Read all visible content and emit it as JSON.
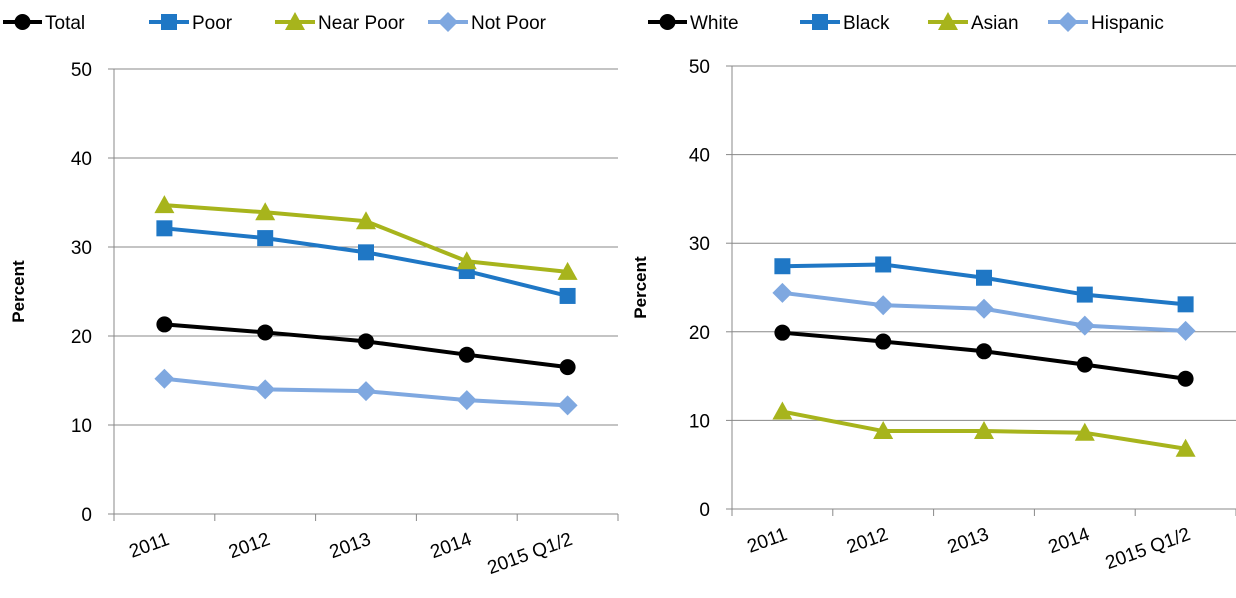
{
  "chart_data": [
    {
      "type": "line",
      "title": "",
      "xlabel": "",
      "ylabel": "Percent",
      "ylim": [
        0,
        50
      ],
      "yticks": [
        0,
        10,
        20,
        30,
        40,
        50
      ],
      "categories": [
        "2011",
        "2012",
        "2013",
        "2014",
        "2015 Q1/2"
      ],
      "legend_position": "top",
      "grid": "horizontal",
      "series": [
        {
          "name": "Total",
          "color": "#000000",
          "marker": "circle",
          "values": [
            21.3,
            20.4,
            19.4,
            17.9,
            16.5
          ]
        },
        {
          "name": "Poor",
          "color": "#1f77c5",
          "marker": "square",
          "values": [
            32.1,
            31.0,
            29.4,
            27.3,
            24.5
          ]
        },
        {
          "name": "Near Poor",
          "color": "#a7b41c",
          "marker": "triangle",
          "values": [
            34.7,
            33.9,
            32.9,
            28.4,
            27.2
          ]
        },
        {
          "name": "Not Poor",
          "color": "#7fa8e0",
          "marker": "diamond",
          "values": [
            15.2,
            14.0,
            13.8,
            12.8,
            12.2
          ]
        }
      ]
    },
    {
      "type": "line",
      "title": "",
      "xlabel": "",
      "ylabel": "Percent",
      "ylim": [
        0,
        50
      ],
      "yticks": [
        0,
        10,
        20,
        30,
        40,
        50
      ],
      "categories": [
        "2011",
        "2012",
        "2013",
        "2014",
        "2015 Q1/2"
      ],
      "legend_position": "top",
      "grid": "horizontal",
      "series": [
        {
          "name": "White",
          "color": "#000000",
          "marker": "circle",
          "values": [
            19.9,
            18.9,
            17.8,
            16.3,
            14.7
          ]
        },
        {
          "name": "Black",
          "color": "#1f77c5",
          "marker": "square",
          "values": [
            27.4,
            27.6,
            26.1,
            24.2,
            23.1
          ]
        },
        {
          "name": "Asian",
          "color": "#a7b41c",
          "marker": "triangle",
          "values": [
            11.0,
            8.8,
            8.8,
            8.6,
            6.8
          ]
        },
        {
          "name": "Hispanic",
          "color": "#7fa8e0",
          "marker": "diamond",
          "values": [
            24.4,
            23.0,
            22.6,
            20.7,
            20.1
          ]
        }
      ]
    }
  ]
}
